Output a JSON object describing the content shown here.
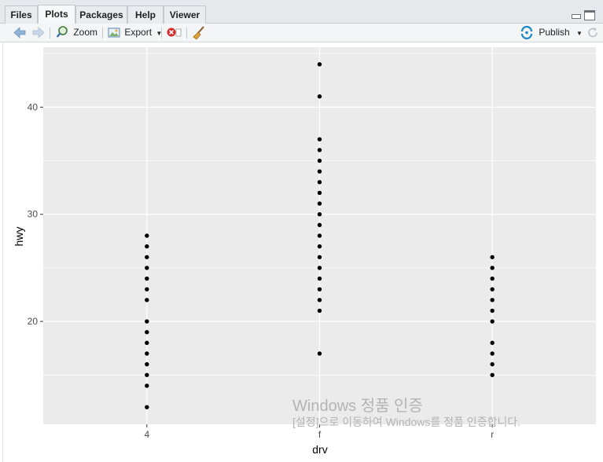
{
  "tabs": [
    {
      "label": "Files",
      "active": false
    },
    {
      "label": "Plots",
      "active": true
    },
    {
      "label": "Packages",
      "active": false
    },
    {
      "label": "Help",
      "active": false
    },
    {
      "label": "Viewer",
      "active": false
    }
  ],
  "toolbar": {
    "back_icon": "arrow-left-icon",
    "forward_icon": "arrow-right-icon",
    "zoom_label": "Zoom",
    "export_label": "Export",
    "publish_label": "Publish"
  },
  "watermark": {
    "line1": "Windows 정품 인증",
    "line2": "[설정]으로 이동하여 Windows를 정품 인증합니다."
  },
  "colors": {
    "panel_bg": "#ebebeb",
    "grid": "#ffffff",
    "point": "#000000",
    "publish_accent": "#1e88c7"
  },
  "chart_data": {
    "type": "scatter",
    "title": "",
    "xlabel": "drv",
    "ylabel": "hwy",
    "categories": [
      "4",
      "f",
      "r"
    ],
    "ylim": [
      10.4,
      45.6
    ],
    "yticks": [
      20,
      30,
      40
    ],
    "grid": true,
    "points": [
      {
        "x": "4",
        "y": [
          12,
          14,
          15,
          16,
          17,
          18,
          19,
          20,
          22,
          23,
          24,
          25,
          26,
          27,
          28
        ]
      },
      {
        "x": "f",
        "y": [
          17,
          21,
          22,
          23,
          24,
          25,
          26,
          27,
          28,
          29,
          30,
          31,
          32,
          33,
          34,
          35,
          36,
          37,
          41,
          44
        ]
      },
      {
        "x": "r",
        "y": [
          15,
          16,
          17,
          18,
          20,
          21,
          22,
          23,
          24,
          25,
          26
        ]
      }
    ]
  }
}
